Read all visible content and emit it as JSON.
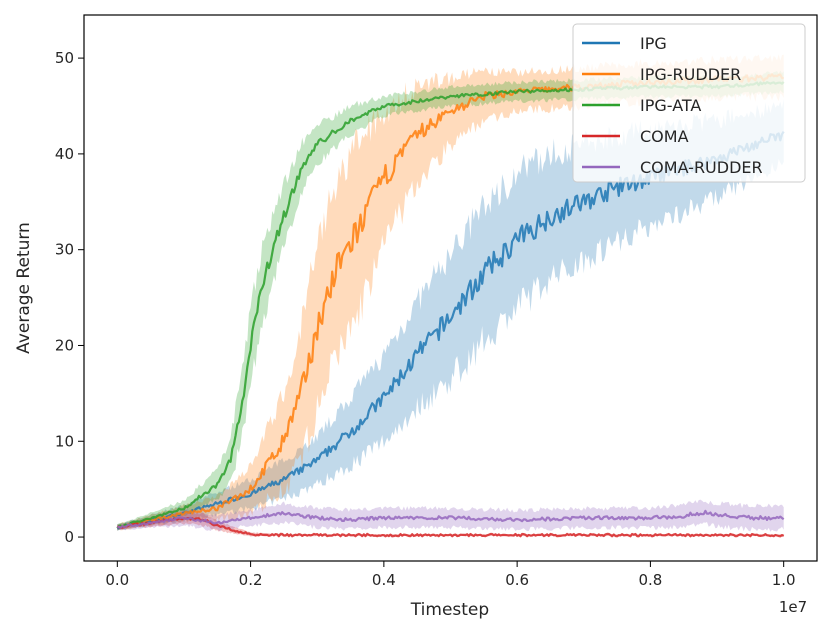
{
  "chart_data": {
    "type": "line",
    "title": "",
    "xlabel": "Timestep",
    "ylabel": "Average Return",
    "x_scale_label": "1e7",
    "xlim": [
      -0.05,
      1.05
    ],
    "ylim": [
      -2.5,
      54.5
    ],
    "x_ticks": [
      0.0,
      0.2,
      0.4,
      0.6,
      0.8,
      1.0
    ],
    "x_tick_labels": [
      "0.0",
      "0.2",
      "0.4",
      "0.6",
      "0.8",
      "1.0"
    ],
    "y_ticks": [
      0,
      10,
      20,
      30,
      40,
      50
    ],
    "y_tick_labels": [
      "0",
      "10",
      "20",
      "30",
      "40",
      "50"
    ],
    "legend_position": "top-right",
    "series": [
      {
        "name": "IPG",
        "color": "#1f77b4",
        "x": [
          0.0,
          0.1,
          0.2,
          0.25,
          0.3,
          0.35,
          0.4,
          0.45,
          0.5,
          0.55,
          0.6,
          0.65,
          0.7,
          0.75,
          0.8,
          0.85,
          0.9,
          0.95,
          1.0
        ],
        "values": [
          1.0,
          2.5,
          4.5,
          6.0,
          8.0,
          11.0,
          14.5,
          19.0,
          23.0,
          27.5,
          31.0,
          33.5,
          35.0,
          36.5,
          37.5,
          38.5,
          39.5,
          40.8,
          42.0
        ],
        "band": [
          0.3,
          0.8,
          1.5,
          2.0,
          2.5,
          3.5,
          4.5,
          5.5,
          6.5,
          7.0,
          7.0,
          6.5,
          6.0,
          5.5,
          5.0,
          4.5,
          4.0,
          3.5,
          3.0
        ]
      },
      {
        "name": "IPG-RUDDER",
        "color": "#ff7f0e",
        "x": [
          0.0,
          0.1,
          0.15,
          0.2,
          0.25,
          0.28,
          0.3,
          0.33,
          0.36,
          0.4,
          0.45,
          0.5,
          0.55,
          0.6,
          0.7,
          0.8,
          0.9,
          1.0
        ],
        "values": [
          1.0,
          2.5,
          3.0,
          5.0,
          10.0,
          16.0,
          22.0,
          28.0,
          32.0,
          37.5,
          42.0,
          44.5,
          46.0,
          46.5,
          47.0,
          47.5,
          47.8,
          48.0
        ],
        "band": [
          0.3,
          0.8,
          1.2,
          2.5,
          5.0,
          7.5,
          8.5,
          9.0,
          9.0,
          7.0,
          5.0,
          3.5,
          2.5,
          2.0,
          2.0,
          2.0,
          2.0,
          2.0
        ]
      },
      {
        "name": "IPG-ATA",
        "color": "#2ca02c",
        "x": [
          0.0,
          0.05,
          0.1,
          0.15,
          0.17,
          0.19,
          0.2,
          0.22,
          0.24,
          0.26,
          0.28,
          0.3,
          0.35,
          0.4,
          0.5,
          0.6,
          0.8,
          0.9,
          1.0
        ],
        "values": [
          1.0,
          2.0,
          3.0,
          5.5,
          8.0,
          15.0,
          20.0,
          27.0,
          31.5,
          35.5,
          39.0,
          41.0,
          43.5,
          45.0,
          46.0,
          46.5,
          47.0,
          47.0,
          47.5
        ],
        "band": [
          0.3,
          0.5,
          0.8,
          1.5,
          2.5,
          3.5,
          4.0,
          4.0,
          3.5,
          3.0,
          2.5,
          2.0,
          1.5,
          1.0,
          1.0,
          1.0,
          1.0,
          1.0,
          1.0
        ]
      },
      {
        "name": "COMA",
        "color": "#d62728",
        "x": [
          0.0,
          0.05,
          0.1,
          0.13,
          0.15,
          0.18,
          0.2,
          0.25,
          0.3,
          0.4,
          0.5,
          0.6,
          0.7,
          0.8,
          0.9,
          1.0
        ],
        "values": [
          1.0,
          1.5,
          2.0,
          1.8,
          1.2,
          0.6,
          0.3,
          0.2,
          0.2,
          0.2,
          0.2,
          0.2,
          0.2,
          0.2,
          0.2,
          0.2
        ],
        "band": [
          0.2,
          0.4,
          0.6,
          0.6,
          0.5,
          0.3,
          0.2,
          0.1,
          0.1,
          0.1,
          0.1,
          0.1,
          0.1,
          0.1,
          0.1,
          0.1
        ]
      },
      {
        "name": "COMA-RUDDER",
        "color": "#9467bd",
        "x": [
          0.0,
          0.05,
          0.1,
          0.15,
          0.2,
          0.25,
          0.3,
          0.35,
          0.4,
          0.5,
          0.6,
          0.7,
          0.8,
          0.85,
          0.88,
          0.9,
          0.95,
          1.0
        ],
        "values": [
          1.0,
          1.5,
          2.0,
          1.5,
          2.0,
          2.5,
          2.0,
          1.8,
          2.0,
          2.0,
          1.8,
          2.0,
          2.0,
          2.2,
          2.6,
          2.3,
          2.0,
          2.0
        ],
        "band": [
          0.3,
          0.5,
          0.8,
          0.8,
          0.8,
          1.0,
          1.0,
          1.0,
          1.0,
          1.0,
          1.0,
          1.0,
          1.0,
          1.2,
          1.2,
          1.2,
          1.2,
          1.2
        ]
      }
    ]
  }
}
